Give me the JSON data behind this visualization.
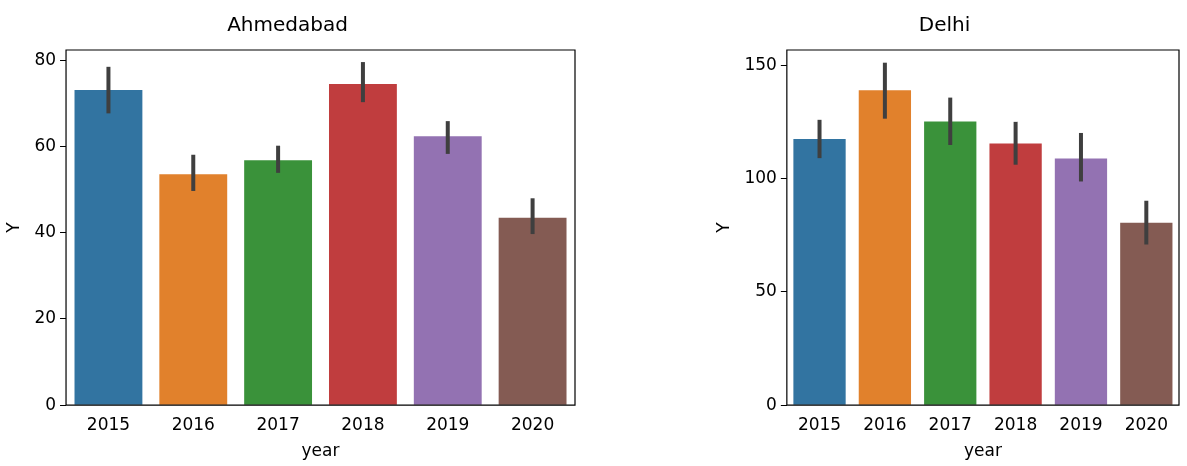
{
  "chart_data": [
    {
      "type": "bar",
      "title": "Ahmedabad",
      "xlabel": "year",
      "ylabel": "Y",
      "categories": [
        "2015",
        "2016",
        "2017",
        "2018",
        "2019",
        "2020"
      ],
      "values": [
        73.1,
        53.6,
        56.8,
        74.5,
        62.4,
        43.5
      ],
      "colors": [
        "#3274a1",
        "#e1812c",
        "#3a923a",
        "#c03d3e",
        "#9372b2",
        "#845b53"
      ],
      "errors": [
        [
          67.7,
          78.5
        ],
        [
          49.7,
          58.1
        ],
        [
          53.9,
          60.2
        ],
        [
          70.3,
          79.6
        ],
        [
          58.3,
          65.9
        ],
        [
          39.7,
          48.0
        ]
      ],
      "ylim": [
        0,
        82.4
      ],
      "yticks": [
        0,
        20,
        40,
        60,
        80
      ]
    },
    {
      "type": "bar",
      "title": "Delhi",
      "xlabel": "year",
      "ylabel": "Y",
      "categories": [
        "2015",
        "2016",
        "2017",
        "2018",
        "2019",
        "2020"
      ],
      "values": [
        117.4,
        138.9,
        125.2,
        115.4,
        108.8,
        80.5
      ],
      "colors": [
        "#3274a1",
        "#e1812c",
        "#3a923a",
        "#c03d3e",
        "#9372b2",
        "#845b53"
      ],
      "errors": [
        [
          109.0,
          125.9
        ],
        [
          126.4,
          151.1
        ],
        [
          114.8,
          135.7
        ],
        [
          106.1,
          125.0
        ],
        [
          98.7,
          120.1
        ],
        [
          70.9,
          90.2
        ]
      ],
      "ylim": [
        0,
        156.7
      ],
      "yticks": [
        0,
        50,
        100,
        150
      ]
    }
  ]
}
